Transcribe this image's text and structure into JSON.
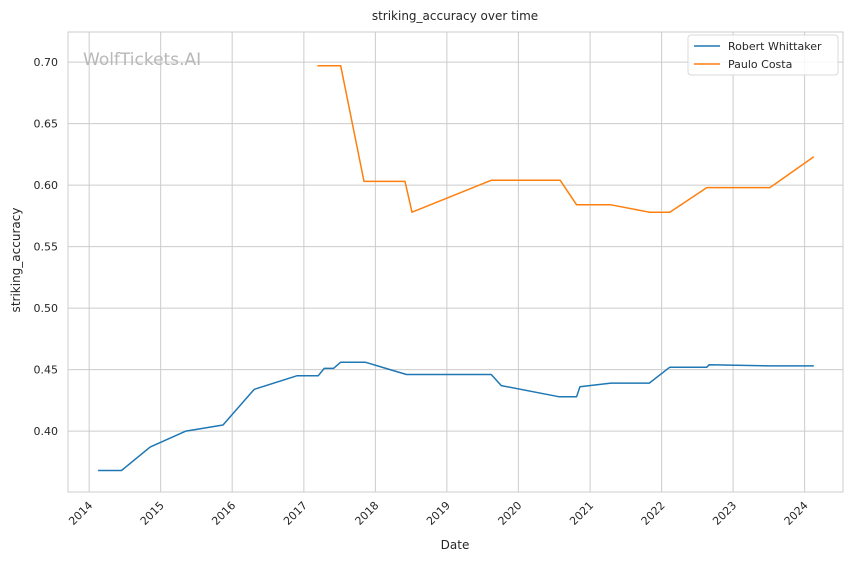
{
  "chart_data": {
    "type": "line",
    "title": "striking_accuracy over time",
    "xlabel": "Date",
    "ylabel": "striking_accuracy",
    "watermark": "WolfTickets.AI",
    "xlim": [
      "2013-09-15",
      "2024-07-15"
    ],
    "ylim": [
      0.3505,
      0.7245
    ],
    "x_ticks": [
      "2014",
      "2015",
      "2016",
      "2017",
      "2018",
      "2019",
      "2020",
      "2021",
      "2022",
      "2023",
      "2024"
    ],
    "y_ticks": [
      "0.40",
      "0.45",
      "0.50",
      "0.55",
      "0.60",
      "0.65",
      "0.70"
    ],
    "grid": true,
    "legend_position": "top-right",
    "series": [
      {
        "name": "Robert Whittaker",
        "color": "#1f77b4",
        "points": [
          [
            "2014-02-15",
            0.368
          ],
          [
            "2014-06-15",
            0.368
          ],
          [
            "2014-11-08",
            0.387
          ],
          [
            "2015-05-10",
            0.4
          ],
          [
            "2015-11-15",
            0.405
          ],
          [
            "2016-04-23",
            0.434
          ],
          [
            "2016-11-26",
            0.445
          ],
          [
            "2017-03-15",
            0.445
          ],
          [
            "2017-04-15",
            0.451
          ],
          [
            "2017-06-01",
            0.451
          ],
          [
            "2017-07-08",
            0.456
          ],
          [
            "2017-11-10",
            0.456
          ],
          [
            "2018-06-09",
            0.446
          ],
          [
            "2019-08-15",
            0.446
          ],
          [
            "2019-10-06",
            0.437
          ],
          [
            "2020-07-25",
            0.428
          ],
          [
            "2020-10-24",
            0.428
          ],
          [
            "2020-11-10",
            0.436
          ],
          [
            "2021-04-17",
            0.439
          ],
          [
            "2021-10-30",
            0.439
          ],
          [
            "2022-02-12",
            0.452
          ],
          [
            "2022-08-20",
            0.452
          ],
          [
            "2022-09-01",
            0.454
          ],
          [
            "2023-07-08",
            0.453
          ],
          [
            "2024-02-17",
            0.453
          ]
        ]
      },
      {
        "name": "Paulo Costa",
        "color": "#ff7f0e",
        "points": [
          [
            "2017-03-11",
            0.697
          ],
          [
            "2017-07-08",
            0.697
          ],
          [
            "2017-11-04",
            0.603
          ],
          [
            "2018-06-01",
            0.603
          ],
          [
            "2018-07-07",
            0.578
          ],
          [
            "2019-08-17",
            0.604
          ],
          [
            "2020-08-01",
            0.604
          ],
          [
            "2020-10-24",
            0.584
          ],
          [
            "2021-04-17",
            0.584
          ],
          [
            "2021-10-30",
            0.578
          ],
          [
            "2022-02-12",
            0.578
          ],
          [
            "2022-08-20",
            0.598
          ],
          [
            "2023-07-08",
            0.598
          ],
          [
            "2024-02-17",
            0.623
          ]
        ]
      }
    ]
  }
}
